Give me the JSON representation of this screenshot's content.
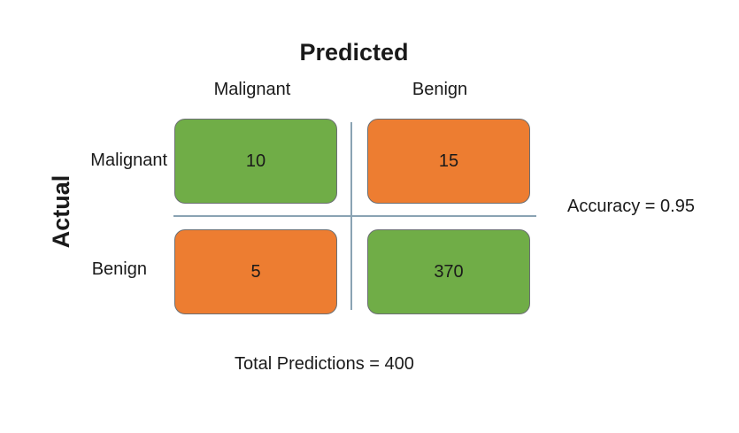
{
  "titles": {
    "predicted": "Predicted",
    "actual": "Actual"
  },
  "columns": [
    "Malignant",
    "Benign"
  ],
  "rows": [
    "Malignant",
    "Benign"
  ],
  "matrix": {
    "r0c0": "10",
    "r0c1": "15",
    "r1c0": "5",
    "r1c1": "370"
  },
  "stats": {
    "accuracy": "Accuracy = 0.95",
    "total": "Total Predictions = 400"
  },
  "colors": {
    "correct": "#70ad47",
    "incorrect": "#ed7d31",
    "divider": "#8aa3b3"
  }
}
